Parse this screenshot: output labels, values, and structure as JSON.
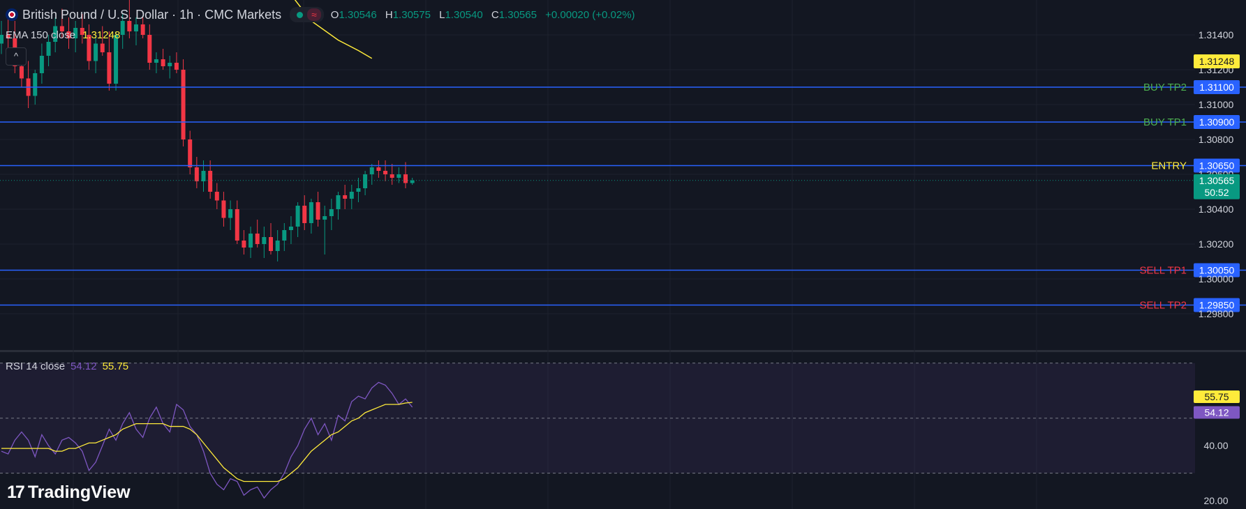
{
  "header": {
    "symbol_title": "British Pound / U.S. Dollar · 1h · CMC Markets",
    "wave_icon": "≈",
    "ohlc": [
      {
        "k": "O",
        "v": "1.30546"
      },
      {
        "k": "H",
        "v": "1.30575"
      },
      {
        "k": "L",
        "v": "1.30540"
      },
      {
        "k": "C",
        "v": "1.30565"
      }
    ],
    "change": "+0.00020 (+0.02%)"
  },
  "ema_legend": {
    "label": "EMA 150 close",
    "value": "1.31248"
  },
  "collapse_icon": "^",
  "rsi_legend": {
    "label": "RSI 14 close",
    "rsi_value": "54.12",
    "ma_value": "55.75"
  },
  "logo": {
    "mark": "17",
    "text": "TradingView"
  },
  "colors": {
    "up": "#089981",
    "down": "#f23645",
    "ema": "#ffeb3b",
    "level": "#2962ff",
    "rsi": "#7e57c2",
    "rsi_ma": "#ffeb3b",
    "bg": "#131722"
  },
  "chart_data": [
    {
      "type": "candlestick",
      "title": "British Pound / U.S. Dollar · 1h · CMC Markets",
      "ylim": [
        1.296,
        1.316
      ],
      "y_ticks": [
        "1.31400",
        "1.31200",
        "1.31000",
        "1.30800",
        "1.30600",
        "1.30400",
        "1.30200",
        "1.30000",
        "1.29800"
      ],
      "candles": [
        [
          1.3135,
          1.3148,
          1.3129,
          1.314
        ],
        [
          1.314,
          1.3152,
          1.313,
          1.3138
        ],
        [
          1.3138,
          1.3148,
          1.3118,
          1.3122
        ],
        [
          1.3122,
          1.313,
          1.311,
          1.3115
        ],
        [
          1.3115,
          1.3125,
          1.3098,
          1.3105
        ],
        [
          1.3105,
          1.312,
          1.31,
          1.3118
        ],
        [
          1.3118,
          1.3135,
          1.3112,
          1.3128
        ],
        [
          1.3128,
          1.314,
          1.3122,
          1.3136
        ],
        [
          1.3136,
          1.315,
          1.313,
          1.3145
        ],
        [
          1.3145,
          1.3155,
          1.3138,
          1.3142
        ],
        [
          1.3142,
          1.315,
          1.3132,
          1.3138
        ],
        [
          1.3138,
          1.3148,
          1.313,
          1.3144
        ],
        [
          1.3144,
          1.3152,
          1.3135,
          1.314
        ],
        [
          1.314,
          1.3146,
          1.312,
          1.3125
        ],
        [
          1.3125,
          1.314,
          1.3118,
          1.3135
        ],
        [
          1.3135,
          1.3145,
          1.3128,
          1.313
        ],
        [
          1.313,
          1.3142,
          1.3108,
          1.3112
        ],
        [
          1.3112,
          1.3142,
          1.3108,
          1.314
        ],
        [
          1.314,
          1.3152,
          1.3132,
          1.3148
        ],
        [
          1.3148,
          1.316,
          1.3138,
          1.3142
        ],
        [
          1.3142,
          1.315,
          1.3134,
          1.3146
        ],
        [
          1.3146,
          1.315,
          1.3138,
          1.314
        ],
        [
          1.314,
          1.3146,
          1.312,
          1.3124
        ],
        [
          1.3124,
          1.313,
          1.3118,
          1.3126
        ],
        [
          1.3126,
          1.3132,
          1.312,
          1.3122
        ],
        [
          1.3122,
          1.3128,
          1.3115,
          1.3124
        ],
        [
          1.3124,
          1.313,
          1.3118,
          1.312
        ],
        [
          1.312,
          1.3126,
          1.3076,
          1.308
        ],
        [
          1.308,
          1.3085,
          1.306,
          1.3064
        ],
        [
          1.3064,
          1.307,
          1.3052,
          1.3056
        ],
        [
          1.3056,
          1.3068,
          1.305,
          1.3062
        ],
        [
          1.3062,
          1.3068,
          1.3046,
          1.305
        ],
        [
          1.305,
          1.3055,
          1.304,
          1.3045
        ],
        [
          1.3045,
          1.305,
          1.303,
          1.3035
        ],
        [
          1.3035,
          1.3045,
          1.3028,
          1.304
        ],
        [
          1.304,
          1.3045,
          1.302,
          1.3022
        ],
        [
          1.3022,
          1.3028,
          1.3014,
          1.3018
        ],
        [
          1.3018,
          1.303,
          1.3012,
          1.3026
        ],
        [
          1.3026,
          1.3034,
          1.3018,
          1.302
        ],
        [
          1.302,
          1.303,
          1.3012,
          1.3024
        ],
        [
          1.3024,
          1.3032,
          1.3014,
          1.3016
        ],
        [
          1.3016,
          1.3028,
          1.301,
          1.3022
        ],
        [
          1.3022,
          1.3032,
          1.3016,
          1.3028
        ],
        [
          1.3028,
          1.3036,
          1.302,
          1.303
        ],
        [
          1.303,
          1.3044,
          1.3024,
          1.3042
        ],
        [
          1.3042,
          1.3048,
          1.3028,
          1.3032
        ],
        [
          1.3032,
          1.3046,
          1.3026,
          1.3044
        ],
        [
          1.3044,
          1.305,
          1.303,
          1.3034
        ],
        [
          1.3034,
          1.3042,
          1.3014,
          1.3036
        ],
        [
          1.3036,
          1.3046,
          1.3028,
          1.304
        ],
        [
          1.304,
          1.305,
          1.3034,
          1.3048
        ],
        [
          1.3048,
          1.3054,
          1.304,
          1.3046
        ],
        [
          1.3046,
          1.3054,
          1.304,
          1.305
        ],
        [
          1.305,
          1.3058,
          1.3044,
          1.3052
        ],
        [
          1.3052,
          1.3062,
          1.3048,
          1.306
        ],
        [
          1.306,
          1.3066,
          1.3054,
          1.3064
        ],
        [
          1.3064,
          1.3068,
          1.3058,
          1.3062
        ],
        [
          1.3062,
          1.3068,
          1.3056,
          1.306
        ],
        [
          1.306,
          1.3066,
          1.3054,
          1.3058
        ],
        [
          1.3058,
          1.3064,
          1.3055,
          1.306
        ],
        [
          1.306,
          1.3067,
          1.3052,
          1.3055
        ],
        [
          1.3055,
          1.3058,
          1.3054,
          1.30565
        ]
      ],
      "ema": {
        "name": "EMA 150 close",
        "value": 1.31248,
        "points": [
          [
            43,
            1.3163
          ],
          [
            46,
            1.3148
          ],
          [
            50,
            1.3137
          ],
          [
            53,
            1.3131
          ],
          [
            55,
            1.31265
          ]
        ]
      },
      "levels": [
        {
          "label": "BUY TP2",
          "price": 1.311,
          "tag": "1.31100",
          "label_color": "#4caf50"
        },
        {
          "label": "BUY TP1",
          "price": 1.309,
          "tag": "1.30900",
          "label_color": "#4caf50"
        },
        {
          "label": "ENTRY",
          "price": 1.3065,
          "tag": "1.30650",
          "label_color": "#ffeb3b"
        },
        {
          "label": "SELL TP1",
          "price": 1.3005,
          "tag": "1.30050",
          "label_color": "#f23645"
        },
        {
          "label": "SELL TP2",
          "price": 1.2985,
          "tag": "1.29850",
          "label_color": "#f23645"
        }
      ],
      "last_price": {
        "value": 1.30565,
        "label": "1.30565",
        "countdown": "50:52"
      },
      "ema_tag": "1.31248"
    },
    {
      "type": "line",
      "title": "RSI 14 close",
      "ylim": [
        17,
        74
      ],
      "y_ticks": [
        "40.00",
        "20.00"
      ],
      "bands": {
        "upper": 70,
        "middle": 50,
        "lower": 30
      },
      "series": [
        {
          "name": "RSI 14 close",
          "values": [
            38,
            37,
            42,
            45,
            42,
            36,
            44,
            40,
            37,
            42,
            43,
            41,
            38,
            31,
            34,
            40,
            46,
            42,
            48,
            52,
            46,
            43,
            50,
            54,
            48,
            45,
            55,
            53,
            47,
            44,
            38,
            30,
            26,
            24,
            28,
            27,
            22,
            24,
            25,
            21,
            24,
            26,
            30,
            36,
            40,
            46,
            50,
            44,
            48,
            42,
            51,
            49,
            56,
            58,
            57,
            61,
            63,
            62,
            59,
            55,
            57,
            54
          ]
        },
        {
          "name": "MA",
          "values": [
            39,
            39,
            39,
            39,
            39,
            39,
            39,
            39,
            38,
            38,
            39,
            39,
            40,
            41,
            41,
            42,
            43,
            44,
            46,
            47,
            48,
            48,
            48,
            48,
            48,
            47,
            47,
            47,
            46,
            44,
            41,
            38,
            35,
            32,
            30,
            28,
            27,
            27,
            27,
            27,
            27,
            27,
            28,
            30,
            32,
            35,
            38,
            40,
            42,
            44,
            45,
            47,
            49,
            50,
            52,
            53,
            54,
            55,
            55,
            55,
            55.5,
            55.75
          ]
        }
      ],
      "price_tags": [
        {
          "label": "55.75",
          "value": 55.75
        },
        {
          "label": "54.12",
          "value": 54.12
        }
      ]
    }
  ]
}
